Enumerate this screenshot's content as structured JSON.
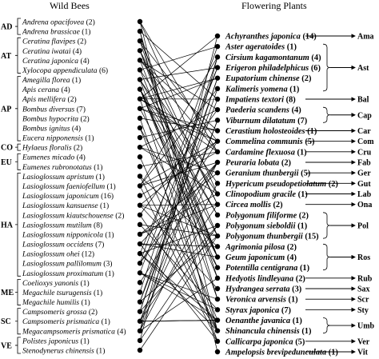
{
  "header": {
    "bees_title": "Wild Bees",
    "plants_title": "Flowering Plants"
  },
  "bee_groups": [
    {
      "label": "AD",
      "members": [
        {
          "name": "Andrena opacifovea",
          "count": "(2)"
        },
        {
          "name": "Andrena brassicae",
          "count": "(1)"
        }
      ]
    },
    {
      "label": "AT",
      "members": [
        {
          "name": "Ceratina flavipes",
          "count": "(2)"
        },
        {
          "name": "Ceratina iwatai",
          "count": "(4)"
        },
        {
          "name": "Ceratina japonica",
          "count": "(4)"
        },
        {
          "name": "Xylocopa appendiculata",
          "count": "(6)"
        }
      ]
    },
    {
      "label": "AP",
      "members": [
        {
          "name": "Amegilla florea",
          "count": "(1)"
        },
        {
          "name": "Apis cerana",
          "count": "(4)"
        },
        {
          "name": "Apis mellifera",
          "count": "(2)"
        },
        {
          "name": "Bombus diversus",
          "count": "(7)"
        },
        {
          "name": "Bombus hypocrita",
          "count": "(2)"
        },
        {
          "name": "Bombus ignitus",
          "count": "(4)"
        },
        {
          "name": "Eucera nipponensis",
          "count": "(1)"
        }
      ]
    },
    {
      "label": "CO",
      "members": [
        {
          "name": "Hylaeus floralis",
          "count": "(2)"
        }
      ]
    },
    {
      "label": "EU",
      "members": [
        {
          "name": "Eumenes micado",
          "count": "(4)"
        },
        {
          "name": "Eumenes rubronotatus",
          "count": "(1)"
        }
      ]
    },
    {
      "label": "HA",
      "members": [
        {
          "name": "Lasioglossum apristum",
          "count": "(1)"
        },
        {
          "name": "Lasioglossum faeniofellum",
          "count": "(1)"
        },
        {
          "name": "Lasioglossum japonicum",
          "count": "(16)"
        },
        {
          "name": "Lasioglossum kansuense",
          "count": "(1)"
        },
        {
          "name": "Lasioglossum kiautschouense",
          "count": "(2)"
        },
        {
          "name": "Lasioglossum mutilum",
          "count": "(8)"
        },
        {
          "name": "Lasioglossum nipponicola",
          "count": "(1)"
        },
        {
          "name": "Lasioglossum occidens",
          "count": "(7)"
        },
        {
          "name": "Lasioglossum ohei",
          "count": "(12)"
        },
        {
          "name": "Lasioglossum pallilomum",
          "count": "(3)"
        },
        {
          "name": "Lasioglossum proximatum",
          "count": "(1)"
        }
      ]
    },
    {
      "label": "ME",
      "members": [
        {
          "name": "Coelioxys yanonis",
          "count": "(1)"
        },
        {
          "name": "Megachile tsurugensis",
          "count": "(1)"
        },
        {
          "name": "Megachile humilis",
          "count": "(1)"
        }
      ]
    },
    {
      "label": "SC",
      "members": [
        {
          "name": "Campsomeris grossa",
          "count": "(2)"
        },
        {
          "name": "Campsomeris prismatica",
          "count": "(1)"
        },
        {
          "name": "Megacampsomeris prismatica",
          "count": "(4)"
        }
      ]
    },
    {
      "label": "VE",
      "members": [
        {
          "name": "Polistes japonicus",
          "count": "(1)"
        },
        {
          "name": "Stenodynerus chinensis",
          "count": "(1)"
        }
      ]
    }
  ],
  "plant_families": [
    {
      "label": "Ama",
      "plants": [
        {
          "name": "Achyranthes japonica",
          "count": "(14)"
        }
      ]
    },
    {
      "label": "Ast",
      "plants": [
        {
          "name": "Aster ageratoides",
          "count": "(1)"
        },
        {
          "name": "Cirsium kagamontanum",
          "count": "(4)"
        },
        {
          "name": "Erigeron philadelphicus",
          "count": "(6)"
        },
        {
          "name": "Eupatorium chinense",
          "count": "(2)"
        },
        {
          "name": "Kalimeris yomena",
          "count": "(1)"
        }
      ]
    },
    {
      "label": "Bal",
      "plants": [
        {
          "name": "Impatiens textori",
          "count": "(8)"
        }
      ]
    },
    {
      "label": "Cap",
      "plants": [
        {
          "name": "Paederia scandens",
          "count": "(4)"
        },
        {
          "name": "Viburnum dilatatum",
          "count": "(7)"
        }
      ]
    },
    {
      "label": "Car",
      "plants": [
        {
          "name": "Cerastium holosteoides",
          "count": "(1)"
        }
      ]
    },
    {
      "label": "Com",
      "plants": [
        {
          "name": "Commelina communis",
          "count": "(5)"
        }
      ]
    },
    {
      "label": "Cru",
      "plants": [
        {
          "name": "Cardamine flexuosa",
          "count": "(1)"
        }
      ]
    },
    {
      "label": "Fab",
      "plants": [
        {
          "name": "Peuraria lobata",
          "count": "(2)"
        }
      ]
    },
    {
      "label": "Ger",
      "plants": [
        {
          "name": "Geranium thunbergii",
          "count": "(5)"
        }
      ]
    },
    {
      "label": "Gut",
      "plants": [
        {
          "name": "Hypericum pseudopetiolatum",
          "count": "(2)"
        }
      ]
    },
    {
      "label": "Lab",
      "plants": [
        {
          "name": "Clinopodium gracile",
          "count": "(1)"
        }
      ]
    },
    {
      "label": "Ona",
      "plants": [
        {
          "name": "Circea mollis",
          "count": "(2)"
        }
      ]
    },
    {
      "label": "Pol",
      "plants": [
        {
          "name": "Polygonum filiforme",
          "count": "(2)"
        },
        {
          "name": "Polygonum sieboldii",
          "count": "(1)"
        },
        {
          "name": "Polygonum thunbergii",
          "count": "(15)"
        }
      ]
    },
    {
      "label": "Ros",
      "plants": [
        {
          "name": "Agrimonia pilosa",
          "count": "(2)"
        },
        {
          "name": "Geum japonicum",
          "count": "(4)"
        },
        {
          "name": "Potentilla centigrana",
          "count": "(1)"
        }
      ]
    },
    {
      "label": "Rub",
      "plants": [
        {
          "name": "Hedyotis lindleyana",
          "count": "(2)"
        }
      ]
    },
    {
      "label": "Sax",
      "plants": [
        {
          "name": "Hydrangea serrata",
          "count": "(3)"
        }
      ]
    },
    {
      "label": "Scr",
      "plants": [
        {
          "name": "Veronica arvensis",
          "count": "(1)"
        }
      ]
    },
    {
      "label": "Sty",
      "plants": [
        {
          "name": "Styrax japonica",
          "count": "(7)"
        }
      ]
    },
    {
      "label": "Umb",
      "plants": [
        {
          "name": "Oenanthe javanica",
          "count": "(1)"
        },
        {
          "name": "Shinancula chinensis",
          "count": "(1)"
        }
      ]
    },
    {
      "label": "Ver",
      "plants": [
        {
          "name": "Callicarpa japonica",
          "count": "(5)"
        }
      ]
    },
    {
      "label": "Vit",
      "plants": [
        {
          "name": "Ampelopsis brevipedunculata",
          "count": "(1)"
        }
      ]
    }
  ]
}
